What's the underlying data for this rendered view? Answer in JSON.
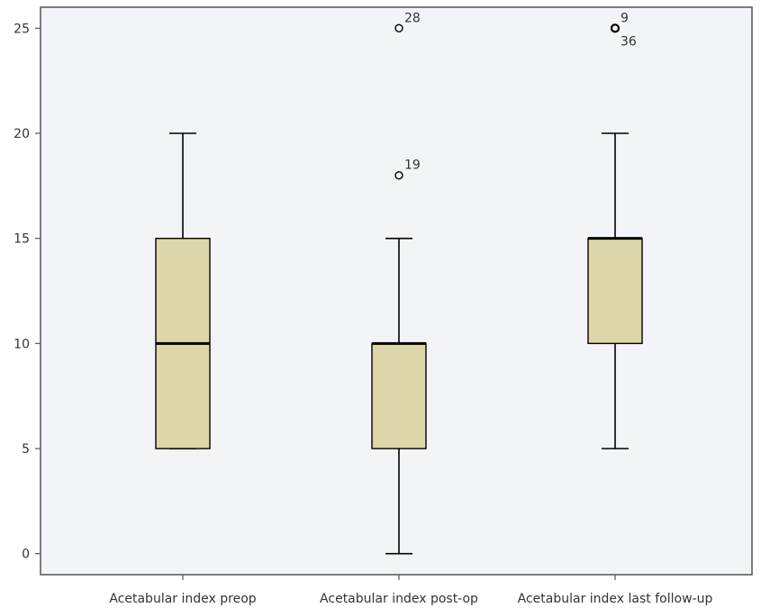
{
  "chart_data": {
    "type": "boxplot",
    "title": "",
    "xlabel": "",
    "ylabel": "",
    "ylim": [
      -1,
      26
    ],
    "yticks": [
      0,
      5,
      10,
      15,
      20,
      25
    ],
    "grid": false,
    "box_color": "#dcd6a8",
    "background_color": "#f2f4f7",
    "categories": [
      "Acetabular index preop",
      "Acetabular index post-op",
      "Acetabular index last follow-up"
    ],
    "boxes": [
      {
        "min": 5,
        "q1": 5,
        "median": 10,
        "q3": 15,
        "max": 20,
        "outliers": []
      },
      {
        "min": 0,
        "q1": 5,
        "median": 10,
        "q3": 10,
        "max": 15,
        "outliers": [
          {
            "value": 18,
            "label": "19"
          },
          {
            "value": 25,
            "label": "28"
          }
        ]
      },
      {
        "min": 5,
        "q1": 10,
        "median": 15,
        "q3": 15,
        "max": 20,
        "outliers": [
          {
            "value": 25,
            "label": "9"
          },
          {
            "value": 25,
            "label": "36"
          }
        ]
      }
    ]
  }
}
